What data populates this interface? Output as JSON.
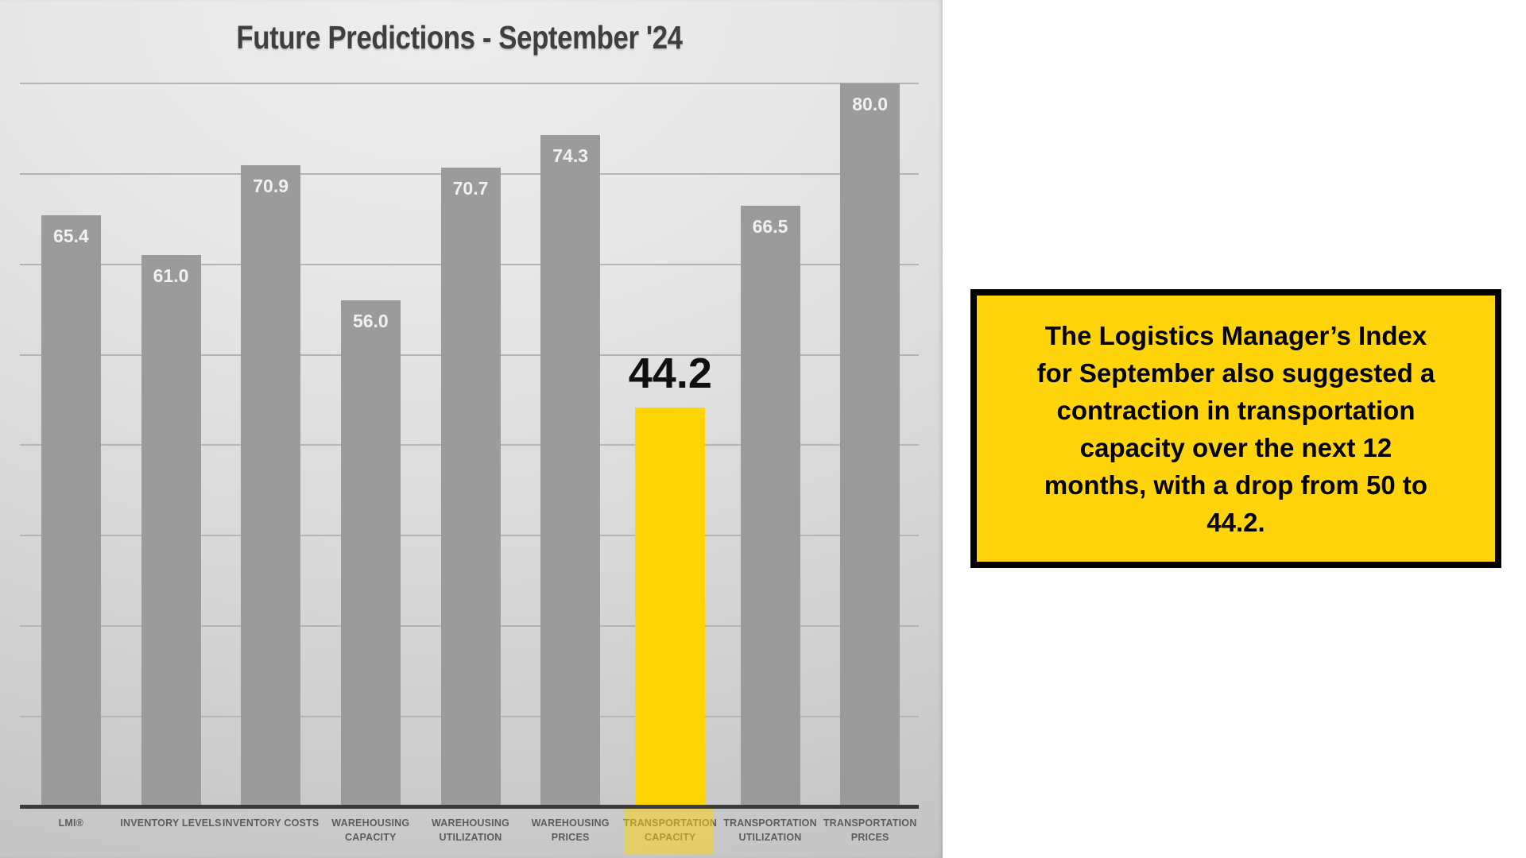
{
  "chart_data": {
    "type": "bar",
    "title": "Future Predictions - September '24",
    "categories": [
      "LMI®",
      "INVENTORY LEVELS",
      "INVENTORY COSTS",
      "WAREHOUSING CAPACITY",
      "WAREHOUSING UTILIZATION",
      "WAREHOUSING PRICES",
      "TRANSPORTATION CAPACITY",
      "TRANSPORTATION UTILIZATION",
      "TRANSPORTATION PRICES"
    ],
    "category_lines": [
      [
        "LMI®"
      ],
      [
        "INVENTORY LEVELS"
      ],
      [
        "INVENTORY COSTS"
      ],
      [
        "WAREHOUSING",
        "CAPACITY"
      ],
      [
        "WAREHOUSING",
        "UTILIZATION"
      ],
      [
        "WAREHOUSING",
        "PRICES"
      ],
      [
        "TRANSPORTATION",
        "CAPACITY"
      ],
      [
        "TRANSPORTATION",
        "UTILIZATION"
      ],
      [
        "TRANSPORTATION",
        "PRICES"
      ]
    ],
    "values": [
      65.4,
      61.0,
      70.9,
      56.0,
      70.7,
      74.3,
      44.2,
      66.5,
      80.0
    ],
    "highlight_index": 6,
    "highlighted_category": "TRANSPORTATION CAPACITY",
    "ylim": [
      0,
      90
    ],
    "gridline_values": [
      10,
      20,
      30,
      40,
      50,
      60,
      70,
      80
    ],
    "grid": true,
    "legend": false,
    "bar_color": "#9b9b9b",
    "highlight_bar_color": "#ffd400",
    "value_label_color": "#f1f1f1",
    "highlight_value_label_color": "#101010",
    "axis_color": "#3b3b3b"
  },
  "callout": {
    "lines": [
      "The Logistics Manager’s Index",
      "for September also suggested a",
      "contraction in transportation",
      "capacity over the next 12",
      "months, with a drop from 50 to",
      "44.2."
    ],
    "background": "#ffd40a",
    "border_color": "#000000"
  }
}
